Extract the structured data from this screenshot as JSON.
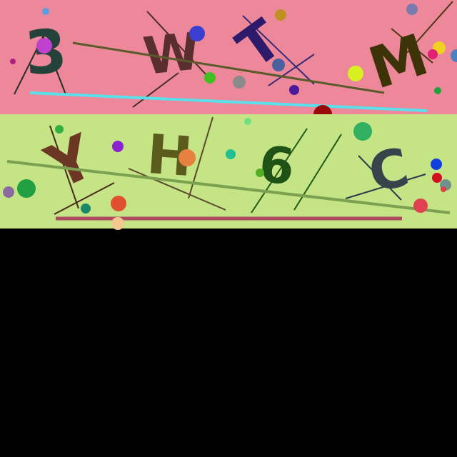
{
  "colors": {
    "background": "#000000",
    "top_band": "#ec8899",
    "bottom_band": "#c4e485"
  },
  "rows": [
    {
      "characters": [
        {
          "text": "3",
          "color": "#25423a"
        },
        {
          "text": "W",
          "color": "#5a2d2f"
        },
        {
          "text": "T",
          "color": "#2e1a6a"
        },
        {
          "text": "M",
          "color": "#3d3308"
        }
      ]
    },
    {
      "characters": [
        {
          "text": "Y",
          "color": "#6b3624"
        },
        {
          "text": "H",
          "color": "#5b5b1b"
        },
        {
          "text": "6",
          "color": "#1f5215"
        },
        {
          "text": "C",
          "color": "#38434b"
        }
      ]
    }
  ]
}
